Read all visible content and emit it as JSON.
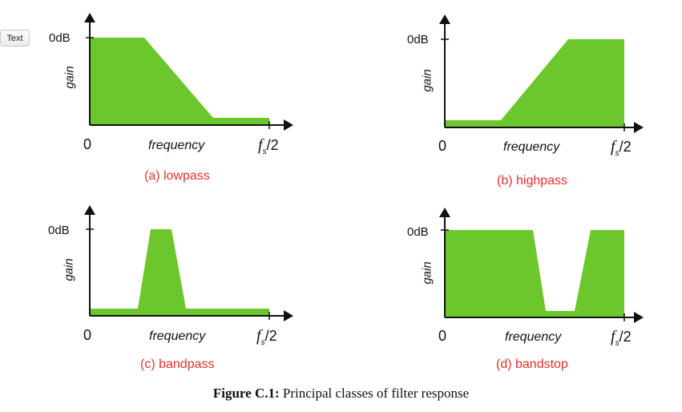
{
  "toolbar": {
    "text_button_label": "Text"
  },
  "colors": {
    "fill": "#6cc72c",
    "axis": "#111111",
    "caption_red": "#e8312a"
  },
  "axes": {
    "y_top_label": "0dB",
    "y_axis_label": "gain",
    "x_origin_label": "0",
    "x_axis_label": "frequency",
    "x_end_label_f": "f",
    "x_end_label_s": "s",
    "x_end_label_rest": "/2"
  },
  "panels": [
    {
      "id": "lowpass",
      "caption": "(a) lowpass"
    },
    {
      "id": "highpass",
      "caption": "(b) highpass"
    },
    {
      "id": "bandpass",
      "caption": "(c) bandpass"
    },
    {
      "id": "bandstop",
      "caption": "(d) bandstop"
    }
  ],
  "figure": {
    "label": "Figure C.1:",
    "text": "Principal classes of filter response"
  }
}
